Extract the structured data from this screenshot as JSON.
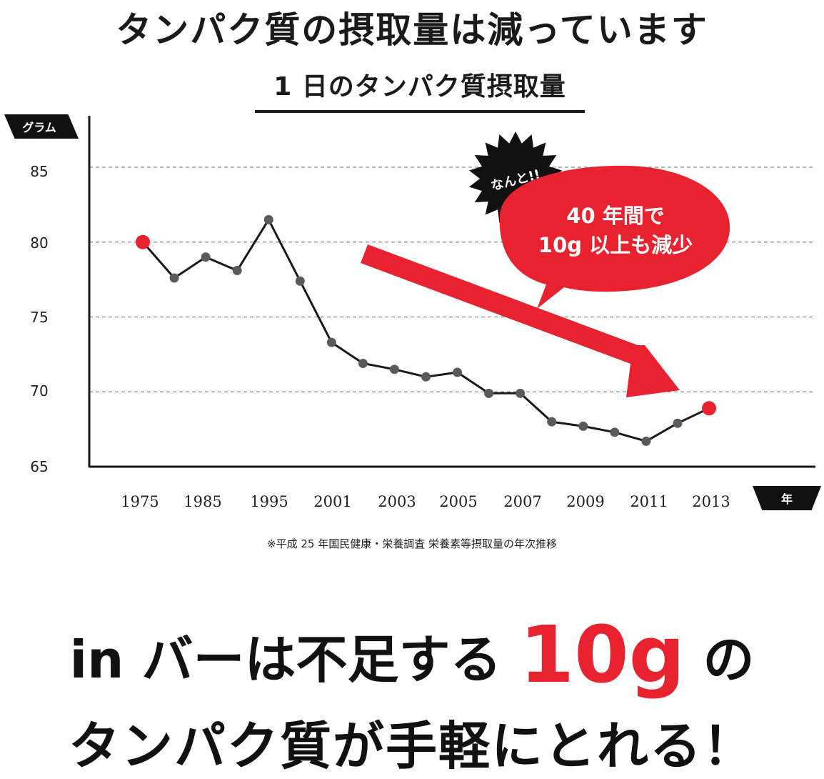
{
  "headline": "タンパク質の摂取量は減っています",
  "colors": {
    "accent": "#e8232f",
    "line": "#1a1a1a",
    "point": "#5a5a5a",
    "badge": "#111111"
  },
  "callout": {
    "starburst_text": "なんと!!",
    "bubble_line1": "40 年間で",
    "bubble_line2": "10g 以上も減少"
  },
  "footnote": "※平成 25 年国民健康・栄養調査 栄養素等摂取量の年次推移",
  "tagline": {
    "line1_pre": "in バーは不足する ",
    "line1_emph": "10g",
    "line1_post": " の",
    "line2": "タンパク質が手軽にとれる！"
  },
  "chart_data": {
    "type": "line",
    "title": "1 日のタンパク質摂取量",
    "ylabel": "グラム",
    "xlabel": "年",
    "ylim": [
      65,
      85
    ],
    "yticks": [
      65,
      70,
      75,
      80,
      85
    ],
    "grid": "dashed horizontal",
    "x_tick_labels": [
      "1975",
      "1985",
      "1995",
      "2001",
      "2003",
      "2005",
      "2007",
      "2009",
      "2011",
      "2013"
    ],
    "series": [
      {
        "values": [
          80.0,
          77.6,
          79.0,
          78.1,
          81.5,
          77.4,
          73.3,
          71.9,
          71.5,
          71.0,
          71.3,
          69.9,
          69.9,
          68.0,
          67.7,
          67.3,
          66.7,
          67.9,
          68.9
        ],
        "highlighted_points": [
          0,
          18
        ]
      }
    ]
  }
}
